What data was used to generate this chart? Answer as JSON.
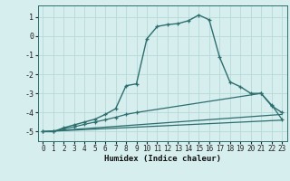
{
  "xlabel": "Humidex (Indice chaleur)",
  "bg_color": "#d6eeee",
  "grid_color": "#b8d8d8",
  "line_color": "#2d6e6e",
  "xlim": [
    -0.5,
    23.5
  ],
  "ylim": [
    -5.5,
    1.6
  ],
  "yticks": [
    1,
    0,
    -1,
    -2,
    -3,
    -4,
    -5
  ],
  "xticks": [
    0,
    1,
    2,
    3,
    4,
    5,
    6,
    7,
    8,
    9,
    10,
    11,
    12,
    13,
    14,
    15,
    16,
    17,
    18,
    19,
    20,
    21,
    22,
    23
  ],
  "series": [
    {
      "x": [
        0,
        1,
        2,
        3,
        4,
        5,
        6,
        7,
        8,
        9,
        10,
        11,
        12,
        13,
        14,
        15,
        16,
        17,
        18,
        19,
        20,
        21,
        22,
        23
      ],
      "y": [
        -5.0,
        -5.0,
        -4.8,
        -4.65,
        -4.5,
        -4.35,
        -4.1,
        -3.8,
        -2.6,
        -2.5,
        -0.15,
        0.5,
        0.6,
        0.65,
        0.8,
        1.1,
        0.85,
        -1.1,
        -2.4,
        -2.65,
        -3.0,
        -3.0,
        -3.65,
        -4.0
      ],
      "marker": true,
      "lw": 1.0
    },
    {
      "x": [
        0,
        1,
        2,
        3,
        4,
        5,
        6,
        7,
        8,
        9,
        21,
        22,
        23
      ],
      "y": [
        -5.0,
        -5.0,
        -4.85,
        -4.75,
        -4.62,
        -4.5,
        -4.38,
        -4.25,
        -4.1,
        -4.0,
        -3.0,
        -3.6,
        -4.35
      ],
      "marker": true,
      "lw": 0.9
    },
    {
      "x": [
        0,
        23
      ],
      "y": [
        -5.0,
        -4.1
      ],
      "marker": false,
      "lw": 0.9
    },
    {
      "x": [
        0,
        23
      ],
      "y": [
        -5.0,
        -4.4
      ],
      "marker": false,
      "lw": 0.9
    }
  ]
}
